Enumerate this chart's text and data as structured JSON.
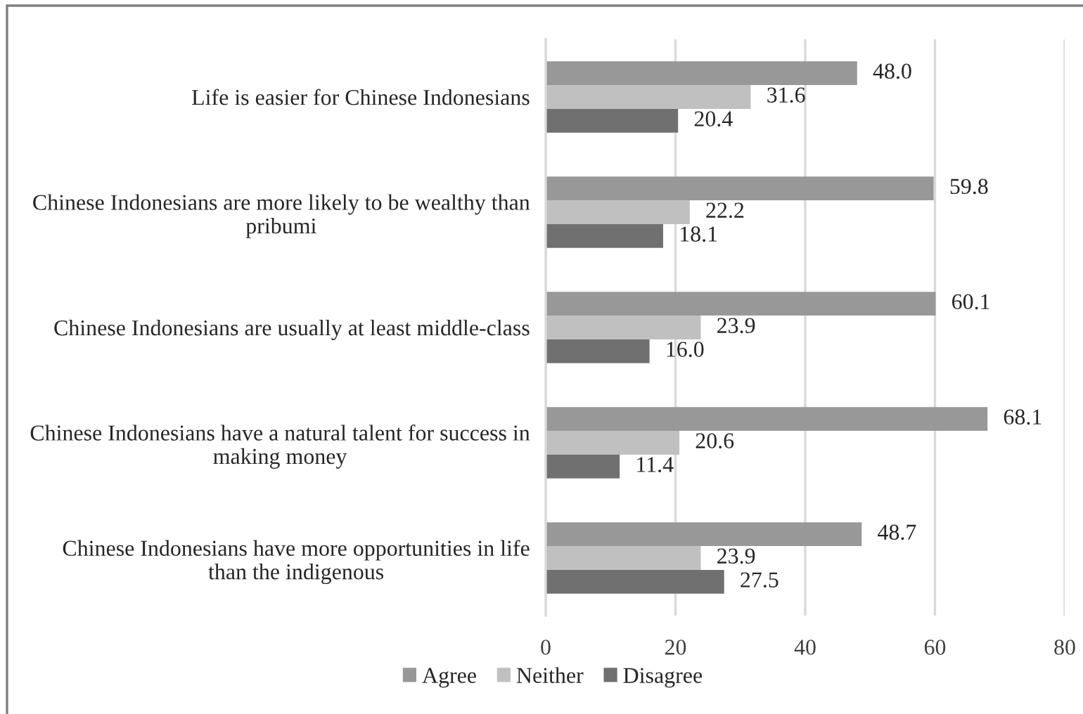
{
  "chart_data": {
    "type": "bar",
    "orientation": "horizontal",
    "categories": [
      "Life is easier for Chinese Indonesians",
      "Chinese Indonesians are more likely to be wealthy than\npribumi",
      "Chinese Indonesians are usually at least middle-class",
      "Chinese Indonesians have a natural talent for success in\nmaking money",
      "Chinese Indonesians have more opportunities in life\nthan the indigenous"
    ],
    "series": [
      {
        "name": "Agree",
        "color": "#989898",
        "values": [
          48.0,
          59.8,
          60.1,
          68.1,
          48.7
        ],
        "value_labels": [
          "48.0",
          "59.8",
          "60.1",
          "68.1",
          "48.7"
        ]
      },
      {
        "name": "Neither",
        "color": "#c0c0c0",
        "values": [
          31.6,
          22.2,
          23.9,
          20.6,
          23.9
        ],
        "value_labels": [
          "31.6",
          "22.2",
          "23.9",
          "20.6",
          "23.9"
        ]
      },
      {
        "name": "Disagree",
        "color": "#707070",
        "values": [
          20.4,
          18.1,
          16.0,
          11.4,
          27.5
        ],
        "value_labels": [
          "20.4",
          "18.1",
          "16.0",
          "11.4",
          "27.5"
        ]
      }
    ],
    "xlim": [
      0,
      80
    ],
    "xticks": [
      0,
      20,
      40,
      60,
      80
    ],
    "grid": "x",
    "legend": "bottom"
  }
}
